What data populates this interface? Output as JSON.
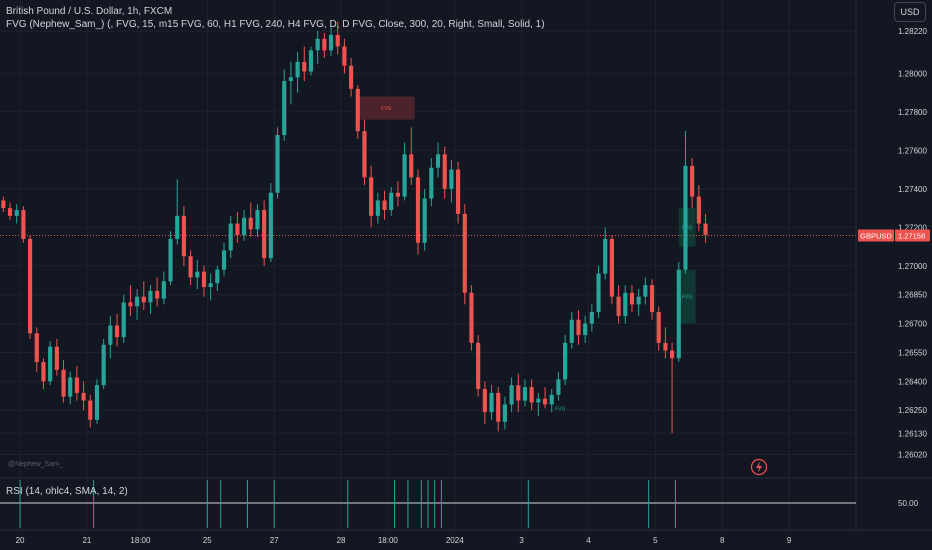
{
  "header": {
    "title": "British Pound / U.S. Dollar, 1h, FXCM",
    "indicator": "FVG (Nephew_Sam_) (, FVG, 15, m15 FVG, 60, H1 FVG, 240, H4 FVG, D, D FVG, Close, 300, 20, Right, Small, Solid, 1)",
    "currency": "USD"
  },
  "watermark": "@Nephew_Sam_",
  "rsi": {
    "label": "RSI (14, ohlc4, SMA, 14, 2)",
    "level_label": "50.00"
  },
  "price_tag": {
    "symbol": "GBPUSD",
    "value": "1.27158",
    "price": 1.27158,
    "color": "#ef5350"
  },
  "colors": {
    "up": "#26a69a",
    "down": "#ef5350",
    "background": "#131722",
    "text": "#d1d4dc",
    "grid": "#1e222d",
    "fvg_bear": "#6b2a30",
    "fvg_bull": "#0f4a3e"
  },
  "fvg_boxes": [
    {
      "label": "FVG",
      "kind": "bearish",
      "x_start": 53.5,
      "x_end": 62,
      "top": 1.2788,
      "bottom": 1.2776
    },
    {
      "label": "FVG",
      "kind": "bullish",
      "x_start": 101.5,
      "x_end": 104,
      "top": 1.273,
      "bottom": 1.271
    },
    {
      "label": "FVG",
      "kind": "bullish",
      "x_start": 101.5,
      "x_end": 104,
      "top": 1.2698,
      "bottom": 1.267
    }
  ],
  "fvg_small_labels": [
    {
      "label": "FVG",
      "x": 83,
      "y": 1.2626
    }
  ],
  "chart_data": {
    "type": "candlestick",
    "title": "British Pound / U.S. Dollar, 1h, FXCM",
    "ylim": [
      1.2596,
      1.2834
    ],
    "xlim": [
      0,
      128
    ],
    "y_ticks": [
      1.2822,
      1.28,
      1.278,
      1.276,
      1.274,
      1.272,
      1.27,
      1.2685,
      1.267,
      1.2655,
      1.264,
      1.2625,
      1.2613,
      1.2602
    ],
    "y_tick_labels": [
      "1.28220",
      "1.28000",
      "1.27800",
      "1.27600",
      "1.27400",
      "1.27200",
      "1.27000",
      "1.26850",
      "1.26700",
      "1.26550",
      "1.26400",
      "1.26250",
      "1.26130",
      "1.26020"
    ],
    "x_ticks": [
      {
        "label": "20",
        "x": 3
      },
      {
        "label": "21",
        "x": 13
      },
      {
        "label": "18:00",
        "x": 21
      },
      {
        "label": "25",
        "x": 31
      },
      {
        "label": "27",
        "x": 41
      },
      {
        "label": "28",
        "x": 51
      },
      {
        "label": "18:00",
        "x": 58
      },
      {
        "label": "2024",
        "x": 68
      },
      {
        "label": "3",
        "x": 78
      },
      {
        "label": "4",
        "x": 88
      },
      {
        "label": "5",
        "x": 98
      },
      {
        "label": "8",
        "x": 108
      },
      {
        "label": "9",
        "x": 118
      }
    ],
    "candles": [
      [
        1.2734,
        1.2736,
        1.2728,
        1.273
      ],
      [
        1.273,
        1.2733,
        1.2724,
        1.2726
      ],
      [
        1.2726,
        1.2732,
        1.2722,
        1.2729
      ],
      [
        1.2729,
        1.2731,
        1.2712,
        1.2714
      ],
      [
        1.2714,
        1.2716,
        1.2662,
        1.2665
      ],
      [
        1.2665,
        1.2668,
        1.2645,
        1.265
      ],
      [
        1.265,
        1.2652,
        1.2636,
        1.264
      ],
      [
        1.264,
        1.2661,
        1.2638,
        1.2658
      ],
      [
        1.2658,
        1.2662,
        1.2643,
        1.2646
      ],
      [
        1.2646,
        1.2651,
        1.2629,
        1.2632
      ],
      [
        1.2632,
        1.2645,
        1.2628,
        1.2642
      ],
      [
        1.2642,
        1.2648,
        1.263,
        1.2634
      ],
      [
        1.2634,
        1.264,
        1.2625,
        1.263
      ],
      [
        1.263,
        1.2633,
        1.2616,
        1.262
      ],
      [
        1.262,
        1.2641,
        1.2618,
        1.2638
      ],
      [
        1.2638,
        1.2662,
        1.2636,
        1.2659
      ],
      [
        1.2659,
        1.2674,
        1.2652,
        1.2669
      ],
      [
        1.2669,
        1.2675,
        1.2658,
        1.2663
      ],
      [
        1.2663,
        1.2685,
        1.266,
        1.2681
      ],
      [
        1.2681,
        1.269,
        1.2674,
        1.2679
      ],
      [
        1.2679,
        1.2688,
        1.2672,
        1.2684
      ],
      [
        1.2684,
        1.2692,
        1.2677,
        1.2681
      ],
      [
        1.2681,
        1.269,
        1.2675,
        1.2687
      ],
      [
        1.2687,
        1.2694,
        1.2679,
        1.2683
      ],
      [
        1.2683,
        1.2697,
        1.268,
        1.2692
      ],
      [
        1.2692,
        1.2718,
        1.269,
        1.2714
      ],
      [
        1.2714,
        1.2745,
        1.2711,
        1.2726
      ],
      [
        1.2726,
        1.2731,
        1.27,
        1.2705
      ],
      [
        1.2705,
        1.2708,
        1.269,
        1.2694
      ],
      [
        1.2694,
        1.2703,
        1.2688,
        1.2697
      ],
      [
        1.2697,
        1.27,
        1.2684,
        1.2689
      ],
      [
        1.2689,
        1.2696,
        1.2682,
        1.2691
      ],
      [
        1.2691,
        1.27,
        1.2687,
        1.2698
      ],
      [
        1.2698,
        1.2712,
        1.2695,
        1.2708
      ],
      [
        1.2708,
        1.2726,
        1.2704,
        1.2722
      ],
      [
        1.2722,
        1.2728,
        1.2712,
        1.2716
      ],
      [
        1.2716,
        1.2729,
        1.2713,
        1.2725
      ],
      [
        1.2725,
        1.2733,
        1.2715,
        1.2719
      ],
      [
        1.2719,
        1.2732,
        1.2715,
        1.2729
      ],
      [
        1.2729,
        1.2734,
        1.27,
        1.2704
      ],
      [
        1.2704,
        1.2743,
        1.2702,
        1.2738
      ],
      [
        1.2738,
        1.2772,
        1.2735,
        1.2768
      ],
      [
        1.2768,
        1.2802,
        1.2765,
        1.2796
      ],
      [
        1.2796,
        1.2806,
        1.2784,
        1.2798
      ],
      [
        1.2798,
        1.2811,
        1.279,
        1.2806
      ],
      [
        1.2806,
        1.2814,
        1.2796,
        1.2801
      ],
      [
        1.2801,
        1.2814,
        1.2799,
        1.2812
      ],
      [
        1.2812,
        1.2822,
        1.2805,
        1.2818
      ],
      [
        1.2818,
        1.2821,
        1.2808,
        1.2812
      ],
      [
        1.2812,
        1.2824,
        1.2809,
        1.282
      ],
      [
        1.282,
        1.2827,
        1.281,
        1.2814
      ],
      [
        1.2814,
        1.2818,
        1.28,
        1.2804
      ],
      [
        1.2804,
        1.2808,
        1.2788,
        1.2792
      ],
      [
        1.2792,
        1.2794,
        1.2766,
        1.277
      ],
      [
        1.277,
        1.2776,
        1.2742,
        1.2746
      ],
      [
        1.2746,
        1.2752,
        1.272,
        1.2726
      ],
      [
        1.2726,
        1.2738,
        1.2722,
        1.2734
      ],
      [
        1.2734,
        1.2739,
        1.2724,
        1.2729
      ],
      [
        1.2729,
        1.2741,
        1.2726,
        1.2738
      ],
      [
        1.2738,
        1.2744,
        1.2731,
        1.2736
      ],
      [
        1.2736,
        1.2764,
        1.2734,
        1.2758
      ],
      [
        1.2758,
        1.2772,
        1.2742,
        1.2746
      ],
      [
        1.2746,
        1.275,
        1.2706,
        1.2712
      ],
      [
        1.2712,
        1.274,
        1.2708,
        1.2735
      ],
      [
        1.2735,
        1.2756,
        1.2731,
        1.2751
      ],
      [
        1.2751,
        1.2764,
        1.2746,
        1.2758
      ],
      [
        1.2758,
        1.2762,
        1.2735,
        1.274
      ],
      [
        1.274,
        1.2755,
        1.2733,
        1.275
      ],
      [
        1.275,
        1.2754,
        1.2722,
        1.2727
      ],
      [
        1.2727,
        1.2732,
        1.268,
        1.2686
      ],
      [
        1.2686,
        1.269,
        1.2656,
        1.266
      ],
      [
        1.266,
        1.2664,
        1.2632,
        1.2636
      ],
      [
        1.2636,
        1.264,
        1.2618,
        1.2624
      ],
      [
        1.2624,
        1.2638,
        1.262,
        1.2634
      ],
      [
        1.2634,
        1.2637,
        1.2614,
        1.2619
      ],
      [
        1.2619,
        1.2632,
        1.2615,
        1.2628
      ],
      [
        1.2628,
        1.2642,
        1.2624,
        1.2638
      ],
      [
        1.2638,
        1.2644,
        1.2624,
        1.263
      ],
      [
        1.263,
        1.2641,
        1.2627,
        1.2637
      ],
      [
        1.2637,
        1.2641,
        1.2625,
        1.2629
      ],
      [
        1.2629,
        1.2634,
        1.2622,
        1.2631
      ],
      [
        1.2631,
        1.2637,
        1.2626,
        1.2628
      ],
      [
        1.2628,
        1.2636,
        1.2624,
        1.2633
      ],
      [
        1.2633,
        1.2645,
        1.263,
        1.2641
      ],
      [
        1.2641,
        1.2664,
        1.2638,
        1.266
      ],
      [
        1.266,
        1.2676,
        1.2657,
        1.2672
      ],
      [
        1.2672,
        1.2677,
        1.2659,
        1.2664
      ],
      [
        1.2664,
        1.2674,
        1.266,
        1.267
      ],
      [
        1.267,
        1.268,
        1.2666,
        1.2676
      ],
      [
        1.2676,
        1.27,
        1.2673,
        1.2696
      ],
      [
        1.2696,
        1.272,
        1.2693,
        1.2714
      ],
      [
        1.2714,
        1.2716,
        1.268,
        1.2684
      ],
      [
        1.2684,
        1.269,
        1.267,
        1.2674
      ],
      [
        1.2674,
        1.269,
        1.267,
        1.2686
      ],
      [
        1.2686,
        1.269,
        1.2676,
        1.268
      ],
      [
        1.268,
        1.2688,
        1.2674,
        1.2684
      ],
      [
        1.2684,
        1.2694,
        1.268,
        1.269
      ],
      [
        1.269,
        1.2693,
        1.2672,
        1.2676
      ],
      [
        1.2676,
        1.2679,
        1.2656,
        1.266
      ],
      [
        1.266,
        1.2668,
        1.2652,
        1.2656
      ],
      [
        1.2656,
        1.266,
        1.2613,
        1.2652
      ],
      [
        1.2652,
        1.2702,
        1.265,
        1.2698
      ],
      [
        1.2698,
        1.277,
        1.2696,
        1.2752
      ],
      [
        1.2752,
        1.2756,
        1.273,
        1.2736
      ],
      [
        1.2736,
        1.2742,
        1.2718,
        1.2722
      ],
      [
        1.2722,
        1.2727,
        1.2712,
        1.2716
      ]
    ],
    "rsi_spikes_x": [
      3,
      14,
      31,
      33,
      37,
      41,
      52,
      59,
      61,
      63,
      64,
      65,
      66,
      79,
      97,
      101
    ]
  }
}
